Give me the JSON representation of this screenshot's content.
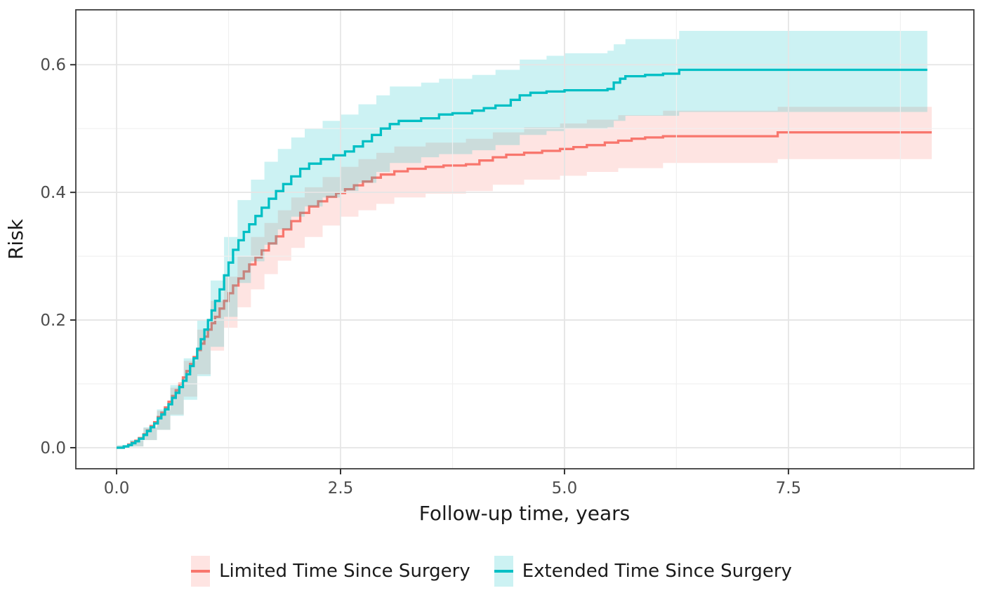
{
  "chart_data": {
    "type": "line",
    "subtype": "step-cumulative-incidence",
    "title": "",
    "xlabel": "Follow-up time, years",
    "ylabel": "Risk",
    "grid": "major+minor",
    "legend_position": "bottom",
    "xlim": [
      -0.455,
      9.57
    ],
    "ylim": [
      -0.033,
      0.686
    ],
    "x_ticks": {
      "values": [
        0.0,
        2.5,
        5.0,
        7.5
      ],
      "labels": [
        "0.0",
        "2.5",
        "5.0",
        "7.5"
      ],
      "minor": [
        1.25,
        3.75,
        6.25,
        8.75
      ]
    },
    "y_ticks": {
      "values": [
        0.0,
        0.2,
        0.4,
        0.6
      ],
      "labels": [
        "0.0",
        "0.2",
        "0.4",
        "0.6"
      ],
      "minor": [
        0.1,
        0.3,
        0.5
      ]
    },
    "series": [
      {
        "name": "Limited Time Since Surgery",
        "line_color": "#F8766D",
        "fill_color": "rgba(248,118,109,0.20)",
        "step": true,
        "points": [
          [
            0.0,
            0.0
          ],
          [
            0.08,
            0.002
          ],
          [
            0.13,
            0.005
          ],
          [
            0.17,
            0.008
          ],
          [
            0.21,
            0.011
          ],
          [
            0.25,
            0.015
          ],
          [
            0.3,
            0.021
          ],
          [
            0.34,
            0.027
          ],
          [
            0.38,
            0.034
          ],
          [
            0.42,
            0.04
          ],
          [
            0.46,
            0.048
          ],
          [
            0.5,
            0.055
          ],
          [
            0.54,
            0.063
          ],
          [
            0.58,
            0.072
          ],
          [
            0.62,
            0.081
          ],
          [
            0.66,
            0.09
          ],
          [
            0.7,
            0.1
          ],
          [
            0.74,
            0.11
          ],
          [
            0.78,
            0.12
          ],
          [
            0.82,
            0.131
          ],
          [
            0.86,
            0.142
          ],
          [
            0.9,
            0.153
          ],
          [
            0.94,
            0.163
          ],
          [
            0.98,
            0.174
          ],
          [
            1.02,
            0.185
          ],
          [
            1.06,
            0.195
          ],
          [
            1.1,
            0.205
          ],
          [
            1.15,
            0.218
          ],
          [
            1.2,
            0.23
          ],
          [
            1.25,
            0.242
          ],
          [
            1.3,
            0.254
          ],
          [
            1.36,
            0.265
          ],
          [
            1.42,
            0.276
          ],
          [
            1.48,
            0.287
          ],
          [
            1.55,
            0.298
          ],
          [
            1.62,
            0.309
          ],
          [
            1.7,
            0.32
          ],
          [
            1.78,
            0.331
          ],
          [
            1.86,
            0.342
          ],
          [
            1.95,
            0.355
          ],
          [
            2.05,
            0.368
          ],
          [
            2.15,
            0.378
          ],
          [
            2.25,
            0.386
          ],
          [
            2.35,
            0.393
          ],
          [
            2.45,
            0.399
          ],
          [
            2.55,
            0.405
          ],
          [
            2.65,
            0.411
          ],
          [
            2.75,
            0.417
          ],
          [
            2.85,
            0.423
          ],
          [
            2.95,
            0.428
          ],
          [
            3.1,
            0.433
          ],
          [
            3.25,
            0.437
          ],
          [
            3.45,
            0.44
          ],
          [
            3.65,
            0.442
          ],
          [
            3.9,
            0.444
          ],
          [
            4.05,
            0.45
          ],
          [
            4.2,
            0.455
          ],
          [
            4.35,
            0.459
          ],
          [
            4.55,
            0.462
          ],
          [
            4.75,
            0.465
          ],
          [
            4.95,
            0.468
          ],
          [
            5.1,
            0.471
          ],
          [
            5.25,
            0.474
          ],
          [
            5.45,
            0.478
          ],
          [
            5.6,
            0.481
          ],
          [
            5.75,
            0.484
          ],
          [
            5.9,
            0.486
          ],
          [
            6.1,
            0.488
          ],
          [
            7.38,
            0.494
          ],
          [
            9.1,
            0.494
          ]
        ],
        "ribbon": [
          [
            0.0,
            0.0,
            0.003
          ],
          [
            0.15,
            0.002,
            0.011
          ],
          [
            0.3,
            0.012,
            0.031
          ],
          [
            0.45,
            0.028,
            0.058
          ],
          [
            0.6,
            0.052,
            0.094
          ],
          [
            0.75,
            0.08,
            0.136
          ],
          [
            0.9,
            0.115,
            0.185
          ],
          [
            1.05,
            0.152,
            0.23
          ],
          [
            1.2,
            0.188,
            0.268
          ],
          [
            1.35,
            0.22,
            0.3
          ],
          [
            1.5,
            0.248,
            0.33
          ],
          [
            1.65,
            0.272,
            0.352
          ],
          [
            1.8,
            0.293,
            0.372
          ],
          [
            1.95,
            0.313,
            0.392
          ],
          [
            2.1,
            0.33,
            0.408
          ],
          [
            2.3,
            0.348,
            0.424
          ],
          [
            2.5,
            0.362,
            0.44
          ],
          [
            2.7,
            0.372,
            0.452
          ],
          [
            2.9,
            0.382,
            0.462
          ],
          [
            3.1,
            0.392,
            0.472
          ],
          [
            3.45,
            0.398,
            0.478
          ],
          [
            3.9,
            0.402,
            0.484
          ],
          [
            4.2,
            0.412,
            0.494
          ],
          [
            4.55,
            0.42,
            0.502
          ],
          [
            4.95,
            0.426,
            0.508
          ],
          [
            5.25,
            0.432,
            0.514
          ],
          [
            5.6,
            0.438,
            0.521
          ],
          [
            6.1,
            0.446,
            0.528
          ],
          [
            7.38,
            0.452,
            0.534
          ],
          [
            9.1,
            0.452,
            0.534
          ]
        ]
      },
      {
        "name": "Extended Time Since Surgery",
        "line_color": "#00BFC4",
        "fill_color": "rgba(0,191,196,0.20)",
        "step": true,
        "points": [
          [
            0.0,
            0.0
          ],
          [
            0.08,
            0.002
          ],
          [
            0.13,
            0.004
          ],
          [
            0.17,
            0.007
          ],
          [
            0.21,
            0.01
          ],
          [
            0.25,
            0.014
          ],
          [
            0.3,
            0.02
          ],
          [
            0.34,
            0.026
          ],
          [
            0.38,
            0.032
          ],
          [
            0.42,
            0.038
          ],
          [
            0.46,
            0.046
          ],
          [
            0.5,
            0.052
          ],
          [
            0.54,
            0.06
          ],
          [
            0.58,
            0.068
          ],
          [
            0.62,
            0.078
          ],
          [
            0.66,
            0.086
          ],
          [
            0.7,
            0.095
          ],
          [
            0.74,
            0.105
          ],
          [
            0.78,
            0.115
          ],
          [
            0.82,
            0.128
          ],
          [
            0.86,
            0.14
          ],
          [
            0.9,
            0.155
          ],
          [
            0.94,
            0.17
          ],
          [
            0.98,
            0.185
          ],
          [
            1.02,
            0.2
          ],
          [
            1.06,
            0.215
          ],
          [
            1.1,
            0.23
          ],
          [
            1.15,
            0.248
          ],
          [
            1.2,
            0.27
          ],
          [
            1.25,
            0.29
          ],
          [
            1.3,
            0.31
          ],
          [
            1.36,
            0.325
          ],
          [
            1.42,
            0.338
          ],
          [
            1.48,
            0.35
          ],
          [
            1.55,
            0.363
          ],
          [
            1.62,
            0.376
          ],
          [
            1.7,
            0.39
          ],
          [
            1.78,
            0.402
          ],
          [
            1.86,
            0.413
          ],
          [
            1.95,
            0.425
          ],
          [
            2.05,
            0.437
          ],
          [
            2.15,
            0.445
          ],
          [
            2.28,
            0.452
          ],
          [
            2.42,
            0.458
          ],
          [
            2.55,
            0.464
          ],
          [
            2.65,
            0.472
          ],
          [
            2.75,
            0.48
          ],
          [
            2.85,
            0.49
          ],
          [
            2.95,
            0.5
          ],
          [
            3.05,
            0.507
          ],
          [
            3.15,
            0.512
          ],
          [
            3.4,
            0.516
          ],
          [
            3.6,
            0.522
          ],
          [
            3.75,
            0.524
          ],
          [
            3.97,
            0.528
          ],
          [
            4.1,
            0.532
          ],
          [
            4.23,
            0.536
          ],
          [
            4.4,
            0.545
          ],
          [
            4.5,
            0.552
          ],
          [
            4.62,
            0.556
          ],
          [
            4.8,
            0.558
          ],
          [
            5.0,
            0.56
          ],
          [
            5.48,
            0.562
          ],
          [
            5.55,
            0.572
          ],
          [
            5.62,
            0.578
          ],
          [
            5.68,
            0.582
          ],
          [
            5.9,
            0.584
          ],
          [
            6.1,
            0.586
          ],
          [
            6.28,
            0.592
          ],
          [
            9.05,
            0.592
          ]
        ],
        "ribbon": [
          [
            0.0,
            0.0,
            0.004
          ],
          [
            0.15,
            0.002,
            0.012
          ],
          [
            0.3,
            0.012,
            0.032
          ],
          [
            0.45,
            0.028,
            0.06
          ],
          [
            0.6,
            0.05,
            0.098
          ],
          [
            0.75,
            0.075,
            0.14
          ],
          [
            0.9,
            0.112,
            0.2
          ],
          [
            1.05,
            0.158,
            0.262
          ],
          [
            1.2,
            0.205,
            0.33
          ],
          [
            1.35,
            0.258,
            0.388
          ],
          [
            1.5,
            0.292,
            0.42
          ],
          [
            1.65,
            0.318,
            0.448
          ],
          [
            1.8,
            0.342,
            0.468
          ],
          [
            1.95,
            0.362,
            0.486
          ],
          [
            2.1,
            0.378,
            0.5
          ],
          [
            2.3,
            0.392,
            0.512
          ],
          [
            2.5,
            0.402,
            0.522
          ],
          [
            2.7,
            0.415,
            0.538
          ],
          [
            2.9,
            0.432,
            0.552
          ],
          [
            3.05,
            0.446,
            0.566
          ],
          [
            3.4,
            0.455,
            0.572
          ],
          [
            3.6,
            0.46,
            0.578
          ],
          [
            3.97,
            0.466,
            0.584
          ],
          [
            4.23,
            0.474,
            0.592
          ],
          [
            4.5,
            0.49,
            0.608
          ],
          [
            4.8,
            0.496,
            0.614
          ],
          [
            5.0,
            0.5,
            0.618
          ],
          [
            5.48,
            0.502,
            0.622
          ],
          [
            5.55,
            0.512,
            0.632
          ],
          [
            5.68,
            0.52,
            0.64
          ],
          [
            6.28,
            0.526,
            0.653
          ],
          [
            9.05,
            0.526,
            0.653
          ]
        ]
      }
    ]
  },
  "legend": {
    "items": [
      {
        "label": "Limited Time Since Surgery",
        "line_color": "#F8766D",
        "fill_color": "rgba(248,118,109,0.20)"
      },
      {
        "label": "Extended Time Since Surgery",
        "line_color": "#00BFC4",
        "fill_color": "rgba(0,191,196,0.20)"
      }
    ]
  },
  "colors": {
    "panel_border": "#3c3c3c",
    "tick_mark": "#333333",
    "grid_major": "#e5e5e5",
    "grid_minor": "#f0f0f0",
    "tick_label": "#4d4d4d",
    "axis_title": "#1a1a1a",
    "background": "#ffffff"
  }
}
